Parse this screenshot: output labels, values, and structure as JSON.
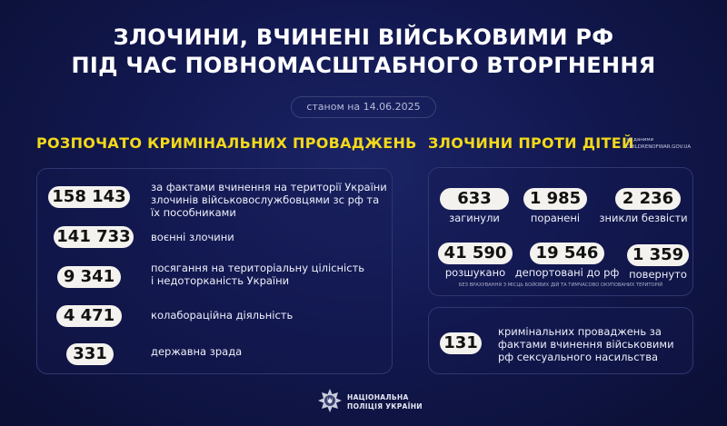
{
  "title": {
    "line1": "ЗЛОЧИНИ, ВЧИНЕНІ ВІЙСЬКОВИМИ РФ",
    "line2": "ПІД ЧАС ПОВНОМАСШТАБНОГО ВТОРГНЕННЯ"
  },
  "date": "станом на 14.06.2025",
  "criminal": {
    "heading": "РОЗПОЧАТО КРИМІНАЛЬНИХ ПРОВАДЖЕНЬ",
    "items": [
      {
        "value": "158 143",
        "desc": "за фактами вчинення на території України злочинів військовослужбовцями зс рф та їх пособниками"
      },
      {
        "value": "141 733",
        "desc": "воєнні злочини"
      },
      {
        "value": "9 341",
        "desc": "посягання на територіальну цілісність і недоторканість України"
      },
      {
        "value": "4 471",
        "desc": "колабораційна діяльність"
      },
      {
        "value": "331",
        "desc": "державна зрада"
      }
    ]
  },
  "children": {
    "heading": "ЗЛОЧИНИ ПРОТИ ДІТЕЙ",
    "source_label": "за даними",
    "source": "CHILDRENOFWAR.GOV.UA",
    "stats": [
      {
        "value": "633",
        "label": "загинули"
      },
      {
        "value": "1 985",
        "label": "поранені"
      },
      {
        "value": "2 236",
        "label": "зникли безвісти"
      },
      {
        "value": "41 590",
        "label": "розшукано"
      },
      {
        "value": "19 546",
        "label": "депортовані до рф"
      },
      {
        "value": "1 359",
        "label": "повернуто"
      }
    ],
    "note": "БЕЗ ВРАХУВАННЯ З МІСЦЬ БОЙОВИХ ДІЙ ТА ТИМЧАСОВО ОКУПОВАНИХ ТЕРИТОРІЙ",
    "sexual": {
      "value": "131",
      "desc": "кримінальних проваджень за фактами вчинення військовими рф сексуального насильства"
    }
  },
  "footer": {
    "org_line1": "НАЦІОНАЛЬНА",
    "org_line2": "ПОЛІЦІЯ УКРАЇНИ",
    "logo": "police-star-emblem"
  },
  "colors": {
    "accent": "#f3d91a",
    "background": "#121850",
    "pill": "#f4f2ee"
  }
}
